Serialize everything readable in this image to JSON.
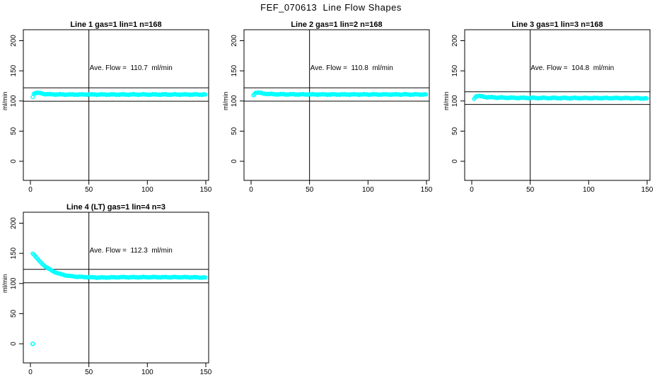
{
  "page_title": "FEF_070613  Line Flow Shapes",
  "colors": {
    "marker": "#00ffff",
    "axis": "#000000",
    "background": "#ffffff"
  },
  "axes": {
    "x_ticks": [
      0,
      50,
      100,
      150
    ],
    "y_ticks": [
      0,
      50,
      100,
      150,
      200
    ],
    "ylabel": "ml/min",
    "xlim": [
      -6,
      152.5
    ],
    "ylim": [
      -32,
      218
    ],
    "vline_x": 50,
    "grid": "off",
    "marker_style": "open-circle"
  },
  "chart_data": [
    {
      "type": "scatter",
      "title": "Line 1 gas=1 lin=1 n=168",
      "annotation": "Ave. Flow =  110.7  ml/min",
      "ave_flow_ml_min": 110.7,
      "n": 168,
      "hlines": [
        99.6,
        121.8
      ],
      "vline": 50,
      "anchors": [
        [
          2,
          107
        ],
        [
          3,
          112.5
        ],
        [
          5,
          114
        ],
        [
          8,
          113
        ],
        [
          12,
          111.5
        ],
        [
          18,
          111
        ],
        [
          30,
          110.7
        ],
        [
          60,
          110.7
        ],
        [
          100,
          110.7
        ],
        [
          150,
          110.7
        ]
      ],
      "extra_points": [],
      "step": 0.9,
      "jitter": 0.8
    },
    {
      "type": "scatter",
      "title": "Line 2 gas=1 lin=2 n=168",
      "annotation": "Ave. Flow =  110.8  ml/min",
      "ave_flow_ml_min": 110.8,
      "n": 168,
      "hlines": [
        99.7,
        121.9
      ],
      "vline": 50,
      "anchors": [
        [
          2,
          110
        ],
        [
          4,
          114
        ],
        [
          6,
          114
        ],
        [
          10,
          112.5
        ],
        [
          15,
          111.5
        ],
        [
          25,
          111
        ],
        [
          60,
          110.8
        ],
        [
          100,
          110.8
        ],
        [
          150,
          110.8
        ]
      ],
      "extra_points": [],
      "step": 0.9,
      "jitter": 0.8
    },
    {
      "type": "scatter",
      "title": "Line 3 gas=1 lin=3 n=168",
      "annotation": "Ave. Flow =  104.8  ml/min",
      "ave_flow_ml_min": 104.8,
      "n": 168,
      "hlines": [
        94.3,
        115.3
      ],
      "vline": 50,
      "anchors": [
        [
          2,
          104
        ],
        [
          4,
          108.5
        ],
        [
          7,
          108
        ],
        [
          12,
          106.5
        ],
        [
          20,
          105.8
        ],
        [
          35,
          105.2
        ],
        [
          60,
          105
        ],
        [
          100,
          104.8
        ],
        [
          130,
          104.8
        ],
        [
          150,
          104.3
        ]
      ],
      "extra_points": [],
      "step": 0.9,
      "jitter": 0.9
    },
    {
      "type": "scatter",
      "title": "Line 4 (LT) gas=1 lin=4 n=3",
      "annotation": "Ave. Flow =  112.3  ml/min",
      "ave_flow_ml_min": 112.3,
      "n": 3,
      "hlines": [
        101.1,
        123.5
      ],
      "vline": 50,
      "anchors": [
        [
          2,
          150
        ],
        [
          4,
          146
        ],
        [
          6,
          141
        ],
        [
          8,
          136.5
        ],
        [
          10,
          132.5
        ],
        [
          13,
          128
        ],
        [
          16,
          124
        ],
        [
          20,
          119.5
        ],
        [
          25,
          116
        ],
        [
          30,
          113.5
        ],
        [
          35,
          112
        ],
        [
          40,
          111.2
        ],
        [
          50,
          110.3
        ],
        [
          60,
          109.8
        ],
        [
          70,
          110.2
        ],
        [
          80,
          110.5
        ],
        [
          90,
          110.3
        ],
        [
          100,
          110.5
        ],
        [
          115,
          110.4
        ],
        [
          130,
          110.5
        ],
        [
          140,
          110.2
        ],
        [
          150,
          109.8
        ]
      ],
      "extra_points": [
        [
          2,
          0
        ]
      ],
      "step": 0.9,
      "jitter": 0.7
    }
  ]
}
